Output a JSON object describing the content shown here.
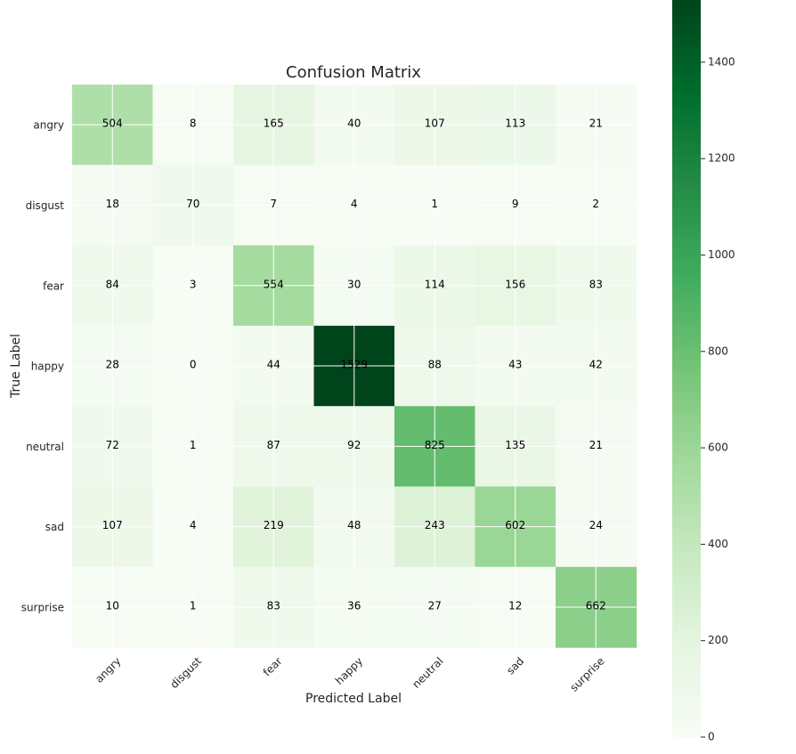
{
  "chart_data": {
    "type": "heatmap",
    "title": "Confusion Matrix",
    "xlabel": "Predicted Label",
    "ylabel": "True Label",
    "x_categories": [
      "angry",
      "disgust",
      "fear",
      "happy",
      "neutral",
      "sad",
      "surprise"
    ],
    "y_categories": [
      "angry",
      "disgust",
      "fear",
      "happy",
      "neutral",
      "sad",
      "surprise"
    ],
    "values": [
      [
        504,
        8,
        165,
        40,
        107,
        113,
        21
      ],
      [
        18,
        70,
        7,
        4,
        1,
        9,
        2
      ],
      [
        84,
        3,
        554,
        30,
        114,
        156,
        83
      ],
      [
        28,
        0,
        44,
        1529,
        88,
        43,
        42
      ],
      [
        72,
        1,
        87,
        92,
        825,
        135,
        21
      ],
      [
        107,
        4,
        219,
        48,
        243,
        602,
        24
      ],
      [
        10,
        1,
        83,
        36,
        27,
        12,
        662
      ]
    ],
    "colormap": "Greens",
    "colormap_low": "#f7fcf5",
    "colormap_high": "#00441b",
    "vmin": 0,
    "vmax": 1529,
    "colorbar_ticks": [
      0,
      200,
      400,
      600,
      800,
      1000,
      1200,
      1400
    ],
    "grid": true,
    "grid_color": "#ffffff"
  }
}
